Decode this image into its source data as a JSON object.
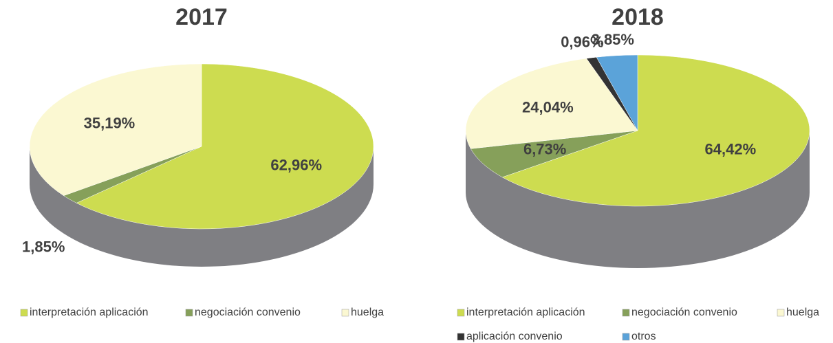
{
  "chart_data": [
    {
      "type": "pie",
      "title": "2017",
      "categories": [
        "interpretación aplicación",
        "negociación convenio",
        "huelga"
      ],
      "values": [
        62.96,
        1.85,
        35.19
      ],
      "value_labels": [
        "62,96%",
        "1,85%",
        "35,19%"
      ],
      "colors": [
        "#cddc50",
        "#86a05a",
        "#fbf8d2"
      ]
    },
    {
      "type": "pie",
      "title": "2018",
      "categories": [
        "interpretación aplicación",
        "negociación convenio",
        "huelga",
        "aplicación convenio",
        "otros"
      ],
      "values": [
        64.42,
        6.73,
        24.04,
        0.96,
        3.85
      ],
      "value_labels": [
        "64,42%",
        "6,73%",
        "24,04%",
        "0,96%",
        "3,85%"
      ],
      "colors": [
        "#cddc50",
        "#86a05a",
        "#fbf8d2",
        "#333333",
        "#5ba3d9"
      ]
    }
  ]
}
